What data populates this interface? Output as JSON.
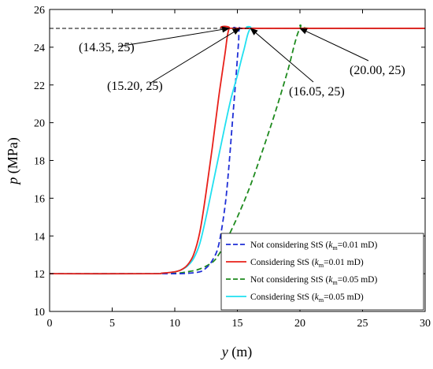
{
  "chart_data": {
    "type": "line",
    "title": "",
    "xlabel_var": "y",
    "xlabel_unit": "(m)",
    "ylabel_var": "p",
    "ylabel_unit": "(MPa)",
    "xlim": [
      0,
      30
    ],
    "ylim": [
      10,
      26
    ],
    "xticks": [
      0,
      5,
      10,
      15,
      20,
      25,
      30
    ],
    "yticks": [
      10,
      12,
      14,
      16,
      18,
      20,
      22,
      24,
      26
    ],
    "grid": false,
    "legend_position": "bottom-right",
    "series": [
      {
        "name_prefix": "Not considering StS (",
        "name_var": "k",
        "name_sub": "m",
        "name_suffix": "=0.01 mD)",
        "color": "#1f2fd6",
        "dash": "dashed",
        "x": [
          0,
          8,
          10,
          11,
          12,
          12.5,
          13,
          13.5,
          14,
          14.3,
          14.6,
          14.9,
          15.1,
          15.2,
          16,
          30
        ],
        "y": [
          12,
          12,
          12,
          12.02,
          12.1,
          12.3,
          12.7,
          13.5,
          15.5,
          17.5,
          20,
          22.5,
          24.3,
          25,
          25,
          25
        ]
      },
      {
        "name_prefix": "Considering StS (",
        "name_var": "k",
        "name_sub": "m",
        "name_suffix": "=0.01 mD)",
        "color": "#e8201a",
        "dash": "solid",
        "x": [
          0,
          8,
          9,
          10,
          10.5,
          11,
          11.5,
          12,
          12.5,
          13,
          13.5,
          14,
          14.35,
          15,
          30
        ],
        "y": [
          12,
          12,
          12.03,
          12.1,
          12.2,
          12.45,
          13,
          14.2,
          16.3,
          18.7,
          21.3,
          23.6,
          25,
          25,
          25
        ]
      },
      {
        "name_prefix": "Not considering StS (",
        "name_var": "k",
        "name_sub": "m",
        "name_suffix": "=0.05 mD)",
        "color": "#1e8a1e",
        "dash": "dashed",
        "x": [
          0,
          8,
          10,
          11,
          12,
          13,
          13.5,
          14,
          15,
          16,
          17,
          18,
          19,
          20,
          21,
          30
        ],
        "y": [
          12,
          12,
          12.02,
          12.1,
          12.25,
          12.6,
          13,
          13.6,
          15,
          16.6,
          18.5,
          20.5,
          22.7,
          25,
          25,
          25
        ]
      },
      {
        "name_prefix": "Considering StS (",
        "name_var": "k",
        "name_sub": "m",
        "name_suffix": "=0.05 mD)",
        "color": "#21e0f0",
        "dash": "solid",
        "x": [
          0,
          8,
          9,
          10,
          10.5,
          11,
          11.5,
          12,
          12.5,
          13,
          13.5,
          14,
          14.5,
          15,
          15.5,
          16.05,
          17,
          30
        ],
        "y": [
          12,
          12,
          12.03,
          12.1,
          12.2,
          12.4,
          12.8,
          13.6,
          15,
          16.6,
          18.2,
          19.8,
          21.3,
          22.5,
          23.8,
          25,
          25,
          25
        ]
      }
    ],
    "reference_line": {
      "y": 25,
      "x_from": 0,
      "x_to": 16.05,
      "color": "#000000",
      "dash": "dashed"
    },
    "annotations": [
      {
        "text": "(14.35, 25)",
        "x": 14.35,
        "y": 25
      },
      {
        "text": "(15.20, 25)",
        "x": 15.2,
        "y": 25
      },
      {
        "text": "(16.05, 25)",
        "x": 16.05,
        "y": 25
      },
      {
        "text": "(20.00, 25)",
        "x": 20.0,
        "y": 25
      }
    ]
  }
}
